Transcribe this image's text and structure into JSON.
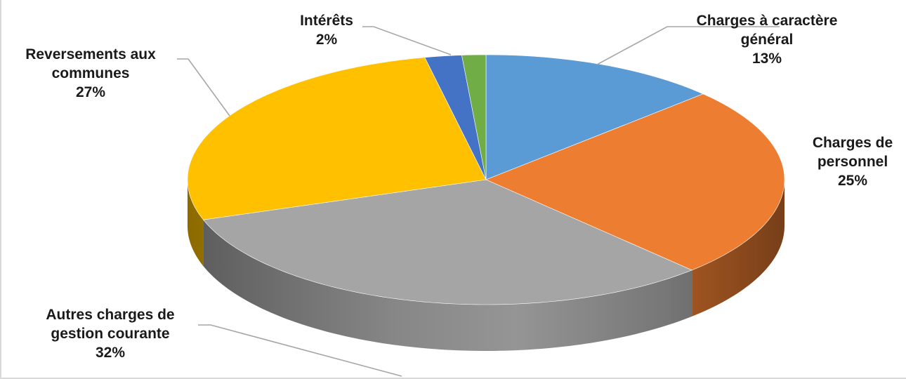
{
  "chart_data": {
    "type": "pie",
    "style": "3d",
    "title": "",
    "slices": [
      {
        "label_lines": [
          "Charges à caractère",
          "général"
        ],
        "percent_label": "13%",
        "value": 13,
        "color": "#5b9bd5"
      },
      {
        "label_lines": [
          "Charges de",
          "personnel"
        ],
        "percent_label": "25%",
        "value": 25,
        "color": "#ed7d31"
      },
      {
        "label_lines": [
          "Autres charges de",
          "gestion courante"
        ],
        "percent_label": "32%",
        "value": 32,
        "color": "#a5a5a5"
      },
      {
        "label_lines": [
          "Reversements aux",
          "communes"
        ],
        "percent_label": "27%",
        "value": 27,
        "color": "#ffc000"
      },
      {
        "label_lines": [
          "Intérêts"
        ],
        "percent_label": "2%",
        "value": 2,
        "color": "#4472c4"
      },
      {
        "label_lines": [],
        "percent_label": "",
        "value": 1.3,
        "color": "#70ad47"
      }
    ],
    "legend": "none",
    "data_labels": "outside with leader lines"
  }
}
